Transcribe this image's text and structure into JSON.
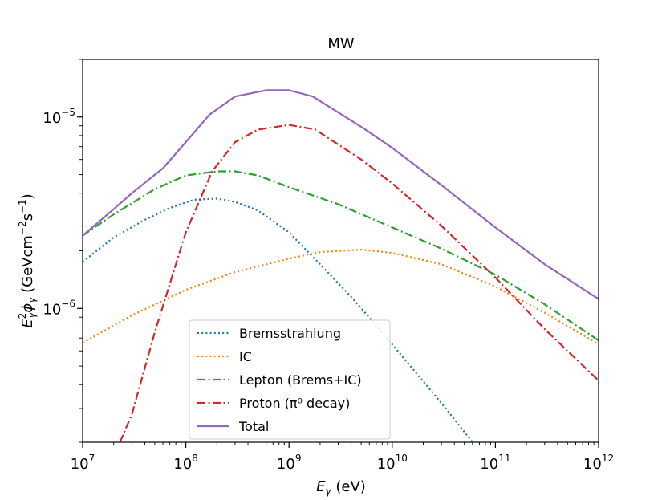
{
  "chart_data": {
    "type": "line",
    "title": "MW",
    "xlabel": "E_γ (eV)",
    "ylabel": "E²_γ φ_γ (GeVcm⁻²s⁻¹)",
    "xscale": "log",
    "yscale": "log",
    "xlim": [
      10000000.0,
      1000000000000.0
    ],
    "ylim": [
      2e-07,
      2e-05
    ],
    "x_ticks": [
      {
        "value": 10000000.0,
        "base": "10",
        "exp": "7"
      },
      {
        "value": 100000000.0,
        "base": "10",
        "exp": "8"
      },
      {
        "value": 1000000000.0,
        "base": "10",
        "exp": "9"
      },
      {
        "value": 10000000000.0,
        "base": "10",
        "exp": "10"
      },
      {
        "value": 100000000000.0,
        "base": "10",
        "exp": "11"
      },
      {
        "value": 1000000000000.0,
        "base": "10",
        "exp": "12"
      }
    ],
    "y_ticks": [
      {
        "value": 1e-06,
        "base": "10",
        "exp": "−6"
      },
      {
        "value": 1e-05,
        "base": "10",
        "exp": "−5"
      }
    ],
    "legend_position": "lower-center",
    "grid": false,
    "series": [
      {
        "name": "Bremsstrahlung",
        "color": "#1f77b4",
        "style": "dotted",
        "x": [
          10000000.0,
          20000000.0,
          40000000.0,
          70000000.0,
          120000000.0,
          200000000.0,
          300000000.0,
          500000000.0,
          1000000000.0,
          2000000000.0,
          4000000000.0,
          8000000000.0,
          15000000000.0,
          30000000000.0,
          60000000000.0,
          100000000000.0
        ],
        "y": [
          1.75e-06,
          2.35e-06,
          2.9e-06,
          3.35e-06,
          3.7e-06,
          3.75e-06,
          3.6e-06,
          3.25e-06,
          2.5e-06,
          1.7e-06,
          1.15e-06,
          7.5e-07,
          5e-07,
          3.2e-07,
          2e-07,
          1.45e-07
        ]
      },
      {
        "name": "IC",
        "color": "#ff7f0e",
        "style": "dotted",
        "x": [
          10000000.0,
          30000000.0,
          100000000.0,
          300000000.0,
          1000000000.0,
          2000000000.0,
          5000000000.0,
          10000000000.0,
          30000000000.0,
          100000000000.0,
          300000000000.0,
          1000000000000.0
        ],
        "y": [
          6.6e-07,
          9.2e-07,
          1.25e-06,
          1.55e-06,
          1.82e-06,
          1.97e-06,
          2.03e-06,
          1.95e-06,
          1.7e-06,
          1.3e-06,
          9.5e-07,
          6.5e-07
        ]
      },
      {
        "name": "Lepton (Brems+IC)",
        "color": "#2ca02c",
        "style": "dashdot",
        "x": [
          10000000.0,
          20000000.0,
          50000000.0,
          100000000.0,
          200000000.0,
          300000000.0,
          500000000.0,
          1000000000.0,
          3000000000.0,
          10000000000.0,
          30000000000.0,
          100000000000.0,
          300000000000.0,
          1000000000000.0
        ],
        "y": [
          2.4e-06,
          3.1e-06,
          4.2e-06,
          4.95e-06,
          5.2e-06,
          5.2e-06,
          4.95e-06,
          4.3e-06,
          3.5e-06,
          2.65e-06,
          2.05e-06,
          1.5e-06,
          1.05e-06,
          6.8e-07
        ]
      },
      {
        "name": "Proton (π⁰ decay)",
        "color": "#d62728",
        "style": "dashdot",
        "x": [
          23000000.0,
          30000000.0,
          50000000.0,
          100000000.0,
          180000000.0,
          300000000.0,
          500000000.0,
          1000000000.0,
          1800000000.0,
          5000000000.0,
          10000000000.0,
          30000000000.0,
          100000000000.0,
          300000000000.0,
          1000000000000.0
        ],
        "y": [
          2e-07,
          2.8e-07,
          7.5e-07,
          2.5e-06,
          5.2e-06,
          7.4e-06,
          8.6e-06,
          9.1e-06,
          8.6e-06,
          6e-06,
          4.5e-06,
          2.7e-06,
          1.45e-06,
          7.8e-07,
          4.2e-07
        ]
      },
      {
        "name": "Total",
        "color": "#9467bd",
        "style": "solid",
        "x": [
          10000000.0,
          20000000.0,
          30000000.0,
          60000000.0,
          100000000.0,
          170000000.0,
          300000000.0,
          600000000.0,
          1000000000.0,
          1700000000.0,
          5000000000.0,
          10000000000.0,
          30000000000.0,
          100000000000.0,
          300000000000.0,
          1000000000000.0
        ],
        "y": [
          2.4e-06,
          3.3e-06,
          4e-06,
          5.4e-06,
          7.4e-06,
          1.03e-05,
          1.28e-05,
          1.38e-05,
          1.38e-05,
          1.28e-05,
          8.9e-06,
          6.9e-06,
          4.4e-06,
          2.65e-06,
          1.7e-06,
          1.12e-06
        ]
      }
    ]
  }
}
